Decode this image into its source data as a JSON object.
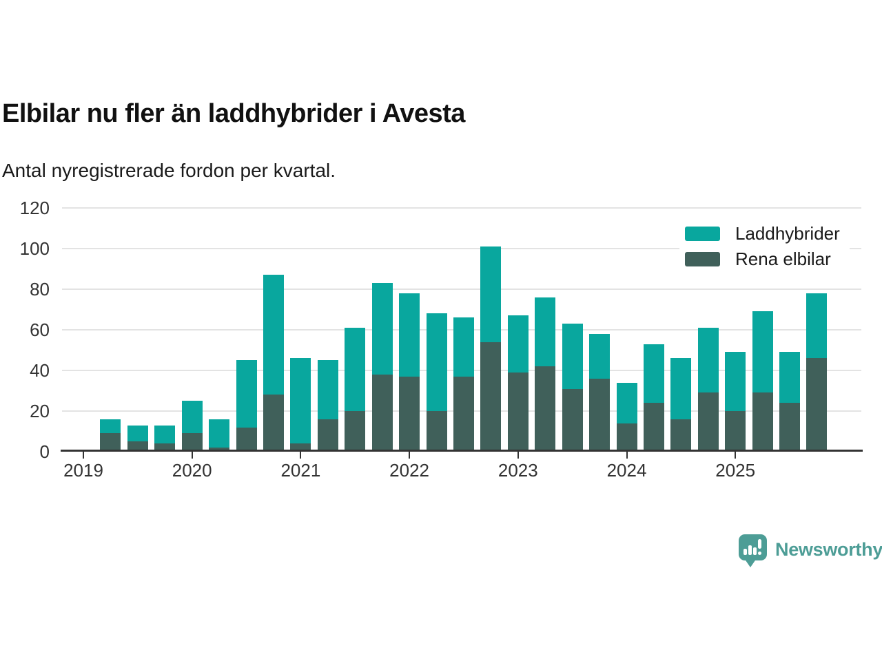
{
  "title": "Elbilar nu fler än laddhybrider i Avesta",
  "subtitle": "Antal nyregistrerade fordon per kvartal.",
  "legend": {
    "items": [
      {
        "label": "Laddhybrider",
        "color": "#09a79e"
      },
      {
        "label": "Rena elbilar",
        "color": "#40605a"
      }
    ]
  },
  "branding": {
    "name": "Newsworthy",
    "color": "#4d9d96"
  },
  "colors": {
    "laddhybrider": "#09a79e",
    "rena_elbilar": "#40605a",
    "axis": "#333333",
    "gridline": "#e3e3e3",
    "title_text": "#111111"
  },
  "chart_data": {
    "type": "bar",
    "stacked": true,
    "title": "Elbilar nu fler än laddhybrider i Avesta",
    "subtitle": "Antal nyregistrerade fordon per kvartal.",
    "xlabel": "",
    "ylabel": "",
    "grid": true,
    "legend_position": "top-right",
    "ylim": [
      0,
      120
    ],
    "y_ticks": [
      0,
      20,
      40,
      60,
      80,
      100,
      120
    ],
    "x_tick_labels": [
      "2019",
      "2020",
      "2021",
      "2022",
      "2023",
      "2024",
      "2025"
    ],
    "categories": [
      "2019 Q2",
      "2019 Q3",
      "2019 Q4",
      "2020 Q1",
      "2020 Q2",
      "2020 Q3",
      "2020 Q4",
      "2021 Q1",
      "2021 Q2",
      "2021 Q3",
      "2021 Q4",
      "2022 Q1",
      "2022 Q2",
      "2022 Q3",
      "2022 Q4",
      "2023 Q1",
      "2023 Q2",
      "2023 Q3",
      "2023 Q4",
      "2024 Q1",
      "2024 Q2",
      "2024 Q3",
      "2024 Q4",
      "2025 Q1",
      "2025 Q2",
      "2025 Q3",
      "2025 Q4"
    ],
    "series": [
      {
        "name": "Rena elbilar",
        "color": "#40605a",
        "values": [
          9,
          5,
          4,
          9,
          2,
          12,
          28,
          4,
          16,
          20,
          38,
          37,
          20,
          37,
          54,
          39,
          42,
          31,
          36,
          14,
          24,
          16,
          29,
          20,
          29,
          24,
          46
        ]
      },
      {
        "name": "Laddhybrider",
        "color": "#09a79e",
        "values": [
          7,
          8,
          9,
          16,
          14,
          33,
          59,
          42,
          29,
          41,
          45,
          41,
          48,
          29,
          47,
          28,
          34,
          32,
          22,
          20,
          29,
          30,
          32,
          29,
          40,
          25,
          32
        ]
      }
    ],
    "totals": [
      16,
      13,
      13,
      25,
      16,
      45,
      87,
      46,
      45,
      61,
      83,
      78,
      68,
      66,
      101,
      67,
      76,
      63,
      58,
      34,
      53,
      46,
      61,
      49,
      69,
      49,
      78
    ]
  }
}
